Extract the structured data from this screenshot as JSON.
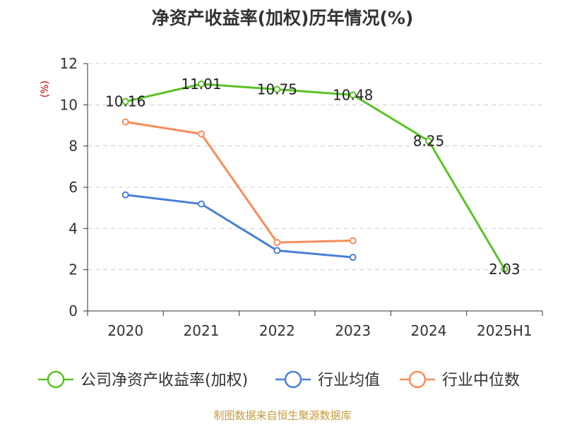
{
  "chart_data": {
    "type": "line",
    "title": "净资产收益率(加权)历年情况(%)",
    "y_unit_label": "(%)",
    "categories": [
      "2020",
      "2021",
      "2022",
      "2023",
      "2024",
      "2025H1"
    ],
    "ylim": [
      0,
      12
    ],
    "y_ticks": [
      "0",
      "2",
      "4",
      "6",
      "8",
      "10",
      "12"
    ],
    "grid": true,
    "legend_position": "bottom",
    "series": [
      {
        "name": "公司净资产收益率(加权)",
        "color": "#5bc225",
        "values": [
          10.16,
          11.01,
          10.75,
          10.48,
          8.25,
          2.03
        ],
        "labels": [
          "10.16",
          "11.01",
          "10.75",
          "10.48",
          "8.25",
          "2.03"
        ]
      },
      {
        "name": "行业均值",
        "color": "#4a7fd6",
        "values": [
          5.63,
          5.19,
          2.93,
          2.6,
          null,
          null
        ]
      },
      {
        "name": "行业中位数",
        "color": "#f78d5a",
        "values": [
          9.17,
          8.59,
          3.32,
          3.41,
          null,
          null
        ]
      }
    ],
    "source": "制图数据来自恒生聚源数据库"
  }
}
